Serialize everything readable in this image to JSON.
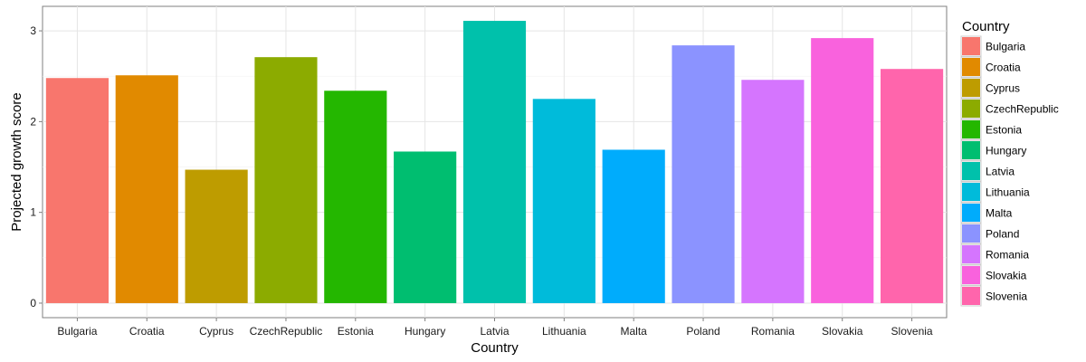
{
  "chart_data": {
    "type": "bar",
    "xlabel": "Country",
    "ylabel": "Projected growth score",
    "categories": [
      "Bulgaria",
      "Croatia",
      "Cyprus",
      "CzechRepublic",
      "Estonia",
      "Hungary",
      "Latvia",
      "Lithuania",
      "Malta",
      "Poland",
      "Romania",
      "Slovakia",
      "Slovenia"
    ],
    "values": [
      2.48,
      2.51,
      1.47,
      2.71,
      2.34,
      1.67,
      3.11,
      2.25,
      1.69,
      2.84,
      2.46,
      2.92,
      2.58
    ],
    "colors": [
      "#F8766D",
      "#E18A00",
      "#BE9C00",
      "#8CAB00",
      "#24B700",
      "#00BE70",
      "#00C1AB",
      "#00BBDA",
      "#00ACFC",
      "#8B93FF",
      "#D575FE",
      "#F962DD",
      "#FF65AC"
    ],
    "y_ticks": [
      0,
      1,
      2,
      3
    ],
    "ylim": [
      -0.16,
      3.27
    ],
    "grid": true,
    "legend": {
      "title": "Country",
      "position": "right"
    }
  }
}
